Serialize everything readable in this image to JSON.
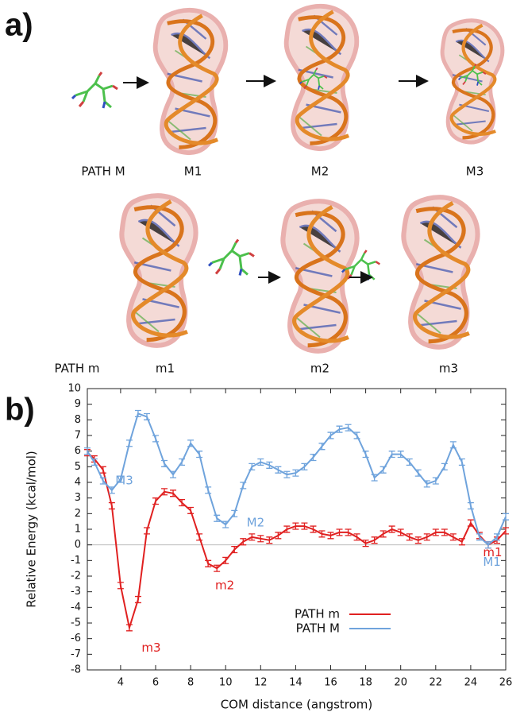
{
  "panel_a": {
    "label": "a)",
    "rows": [
      {
        "path": "PATH M",
        "states": [
          "M1",
          "M2",
          "M3"
        ]
      },
      {
        "path": "PATH m",
        "states": [
          "m1",
          "m2",
          "m3"
        ]
      }
    ]
  },
  "panel_b": {
    "label": "b)"
  },
  "chart_data": {
    "type": "line",
    "x_label": "COM distance (angstrom)",
    "y_label": "Relative Energy (kcal/mol)",
    "x": [
      2.1,
      2.5,
      3,
      3.5,
      4,
      4.5,
      5,
      5.5,
      6,
      6.5,
      7,
      7.5,
      8,
      8.5,
      9,
      9.5,
      10,
      10.5,
      11,
      11.5,
      12,
      12.5,
      13,
      13.5,
      14,
      14.5,
      15,
      15.5,
      16,
      16.5,
      17,
      17.5,
      18,
      18.5,
      19,
      19.5,
      20,
      20.5,
      21,
      21.5,
      22,
      22.5,
      23,
      23.5,
      24,
      24.5,
      25,
      25.5,
      26
    ],
    "series": [
      {
        "name": "PATH m",
        "color": "#e02020",
        "error": 0.2,
        "values": [
          5.9,
          5.5,
          4.8,
          2.5,
          -2.6,
          -5.3,
          -3.5,
          0.9,
          2.8,
          3.4,
          3.3,
          2.7,
          2.2,
          0.5,
          -1.2,
          -1.5,
          -1.0,
          -0.3,
          0.2,
          0.5,
          0.4,
          0.3,
          0.6,
          1.0,
          1.2,
          1.2,
          1.0,
          0.7,
          0.6,
          0.8,
          0.8,
          0.5,
          0.1,
          0.3,
          0.7,
          1.0,
          0.8,
          0.5,
          0.3,
          0.5,
          0.8,
          0.8,
          0.5,
          0.2,
          1.4,
          0.6,
          0.0,
          0.3,
          0.9
        ]
      },
      {
        "name": "PATH M",
        "color": "#6fa3dc",
        "error": 0.2,
        "values": [
          6.0,
          5.3,
          4.1,
          3.5,
          4.2,
          6.5,
          8.4,
          8.2,
          6.8,
          5.2,
          4.5,
          5.3,
          6.5,
          5.8,
          3.5,
          1.7,
          1.3,
          2.0,
          3.8,
          5.0,
          5.3,
          5.1,
          4.8,
          4.5,
          4.6,
          5.0,
          5.6,
          6.3,
          7.0,
          7.4,
          7.5,
          7.0,
          5.8,
          4.3,
          4.8,
          5.8,
          5.8,
          5.3,
          4.6,
          3.9,
          4.1,
          5.0,
          6.4,
          5.3,
          2.5,
          0.5,
          0.0,
          0.5,
          1.8
        ]
      }
    ],
    "annotations": [
      "M3",
      "M2",
      "m2",
      "m3",
      "m1",
      "M1"
    ],
    "xlim": [
      2.1,
      26
    ],
    "ylim": [
      -8,
      10
    ],
    "xticks": [
      4,
      6,
      8,
      10,
      12,
      14,
      16,
      18,
      20,
      22,
      24,
      26
    ],
    "yticks": [
      -8,
      -7,
      -6,
      -5,
      -4,
      -3,
      -2,
      -1,
      0,
      1,
      2,
      3,
      4,
      5,
      6,
      7,
      8,
      9,
      10
    ],
    "zero_line": true
  }
}
